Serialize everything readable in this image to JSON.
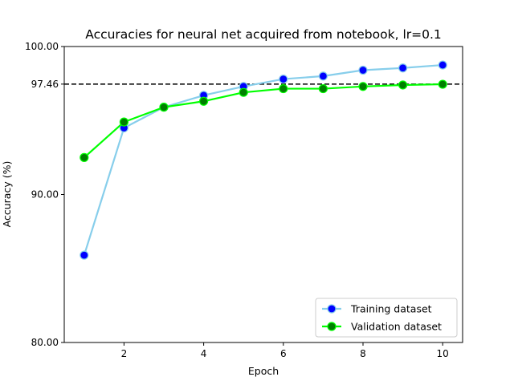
{
  "chart_data": {
    "type": "line",
    "title": "Accuracies for neural net acquired from notebook, lr=0.1",
    "xlabel": "Epoch",
    "ylabel": "Accuracy (%)",
    "xlim": [
      0.5,
      10.5
    ],
    "ylim": [
      80,
      100
    ],
    "x": [
      1,
      2,
      3,
      4,
      5,
      6,
      7,
      8,
      9,
      10
    ],
    "xticks": [
      2,
      4,
      6,
      8,
      10
    ],
    "xtick_labels": [
      "2",
      "4",
      "6",
      "8",
      "10"
    ],
    "yticks": [
      80,
      90,
      97.46,
      100
    ],
    "ytick_labels": [
      "80.00",
      "90.00",
      "97.46",
      "100.00"
    ],
    "reference_line": {
      "y": 97.46,
      "style": "dashed",
      "color": "#000000"
    },
    "grid": false,
    "legend_position": "lower-right",
    "series": [
      {
        "name": "Training dataset",
        "values": [
          85.9,
          94.5,
          95.9,
          96.7,
          97.3,
          97.8,
          98.0,
          98.4,
          98.55,
          98.75
        ],
        "line_color": "#87ceeb",
        "marker_color": "#0000ff",
        "marker_edge": "#87ceeb"
      },
      {
        "name": "Validation dataset",
        "values": [
          92.5,
          94.9,
          95.9,
          96.3,
          96.9,
          97.15,
          97.15,
          97.3,
          97.4,
          97.45
        ],
        "line_color": "#00ff00",
        "marker_color": "#008000",
        "marker_edge": "#00ff00"
      }
    ]
  }
}
